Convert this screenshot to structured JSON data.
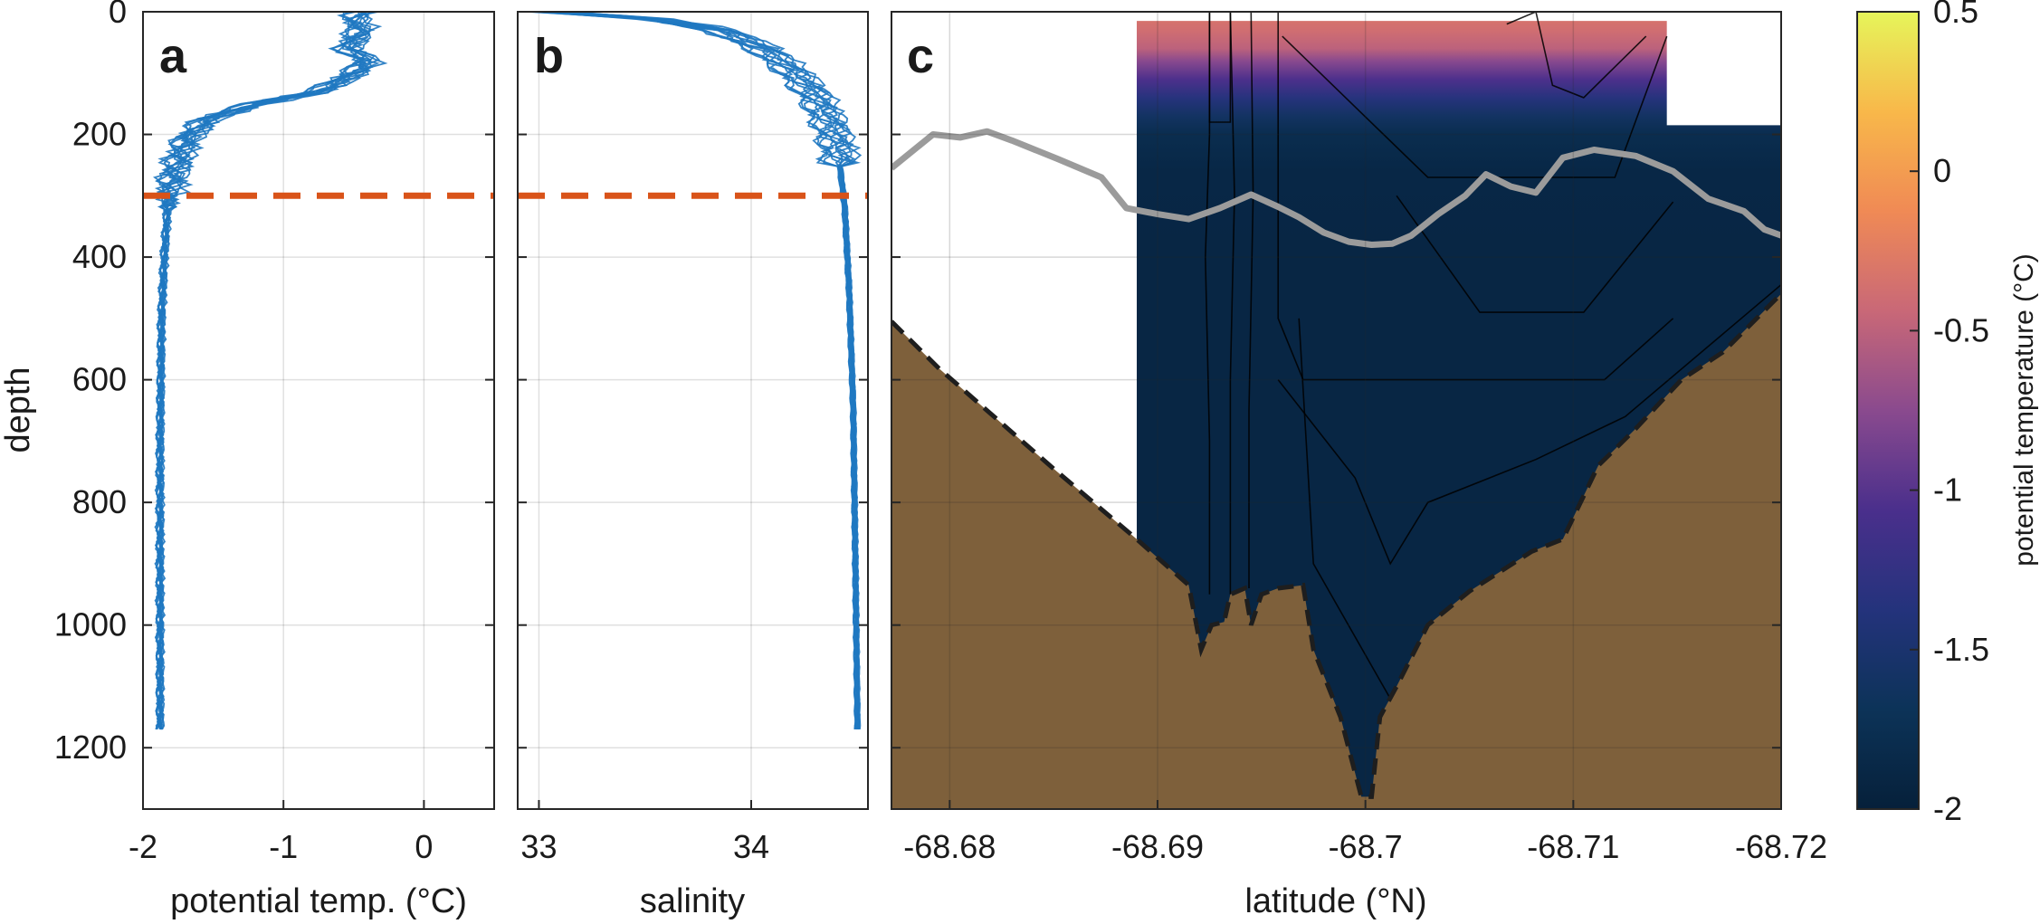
{
  "chart_data": [
    {
      "type": "line",
      "panel_label": "a",
      "xlabel": "potential temp. (°C)",
      "ylabel": "depth",
      "xlim": [
        -2,
        0.5
      ],
      "ylim": [
        1300,
        0
      ],
      "x_ticks": [
        -2,
        -1,
        0
      ],
      "y_ticks": [
        0,
        200,
        400,
        600,
        800,
        1000,
        1200
      ],
      "grid": true,
      "series": [
        {
          "color": "#1f78c1",
          "profile": [
            [
              -0.45,
              0
            ],
            [
              -0.5,
              10
            ],
            [
              -0.45,
              30
            ],
            [
              -0.55,
              60
            ],
            [
              -0.4,
              80
            ],
            [
              -0.5,
              100
            ],
            [
              -0.75,
              130
            ],
            [
              -1.2,
              150
            ],
            [
              -1.55,
              175
            ],
            [
              -1.7,
              210
            ],
            [
              -1.78,
              260
            ],
            [
              -1.82,
              300
            ],
            [
              -1.85,
              400
            ],
            [
              -1.87,
              500
            ],
            [
              -1.88,
              700
            ],
            [
              -1.88,
              900
            ],
            [
              -1.88,
              1100
            ],
            [
              -1.88,
              1175
            ]
          ]
        }
      ],
      "reference_line": {
        "depth": 300,
        "style": "dashed",
        "color": "#d95319"
      }
    },
    {
      "type": "line",
      "panel_label": "b",
      "xlabel": "salinity",
      "xlim": [
        32.9,
        34.55
      ],
      "ylim": [
        1300,
        0
      ],
      "x_ticks": [
        33,
        34
      ],
      "y_ticks": [
        0,
        200,
        400,
        600,
        800,
        1000,
        1200
      ],
      "grid": true,
      "series": [
        {
          "color": "#1f78c1",
          "profile": [
            [
              33.05,
              0
            ],
            [
              33.5,
              10
            ],
            [
              33.85,
              30
            ],
            [
              34.05,
              60
            ],
            [
              34.2,
              100
            ],
            [
              34.3,
              140
            ],
            [
              34.36,
              180
            ],
            [
              34.4,
              220
            ],
            [
              34.42,
              260
            ],
            [
              34.44,
              320
            ],
            [
              34.46,
              450
            ],
            [
              34.48,
              650
            ],
            [
              34.49,
              900
            ],
            [
              34.5,
              1175
            ]
          ]
        }
      ],
      "reference_line": {
        "depth": 300,
        "style": "dashed",
        "color": "#d95319"
      }
    },
    {
      "type": "heatmap",
      "panel_label": "c",
      "xlabel": "latitude (°N)",
      "xlim": [
        -68.6772,
        -68.72
      ],
      "ylim": [
        1300,
        0
      ],
      "x_ticks": [
        -68.68,
        -68.69,
        -68.7,
        -68.71,
        -68.72
      ],
      "y_ticks": [
        0,
        200,
        400,
        600,
        800,
        1000,
        1200
      ],
      "grid": true,
      "colorbar": {
        "label": "potential temperature (°C)",
        "range": [
          -2,
          0.5
        ],
        "ticks": [
          "0.5",
          "0",
          "-0.5",
          "-1",
          "-1.5",
          "-2"
        ],
        "colormap": [
          "#06203a",
          "#0c3358",
          "#24337c",
          "#4a2f8c",
          "#8a4a8e",
          "#c96877",
          "#f08a55",
          "#f8b84a",
          "#e6f55a"
        ]
      },
      "temperature_profile": [
        [
          0,
          -0.3
        ],
        [
          30,
          -0.38
        ],
        [
          60,
          -0.5
        ],
        [
          80,
          -0.75
        ],
        [
          110,
          -1.05
        ],
        [
          140,
          -1.35
        ],
        [
          170,
          -1.6
        ],
        [
          200,
          -1.78
        ],
        [
          260,
          -1.88
        ],
        [
          400,
          -1.9
        ],
        [
          1300,
          -1.9
        ]
      ],
      "bathymetry": {
        "color": "#7e603b",
        "surface": [
          [
            -68.6772,
            505
          ],
          [
            -68.6795,
            582
          ],
          [
            -68.685,
            745
          ],
          [
            -68.689,
            860
          ],
          [
            -68.6915,
            935
          ],
          [
            -68.6921,
            1040
          ],
          [
            -68.6926,
            1000
          ],
          [
            -68.6932,
            995
          ],
          [
            -68.6935,
            950
          ],
          [
            -68.6942,
            940
          ],
          [
            -68.6945,
            1000
          ],
          [
            -68.695,
            950
          ],
          [
            -68.6958,
            940
          ],
          [
            -68.697,
            935
          ],
          [
            -68.6975,
            1040
          ],
          [
            -68.6988,
            1150
          ],
          [
            -68.6998,
            1280
          ],
          [
            -68.7003,
            1280
          ],
          [
            -68.7007,
            1150
          ],
          [
            -68.7015,
            1100
          ],
          [
            -68.703,
            1000
          ],
          [
            -68.705,
            945
          ],
          [
            -68.708,
            880
          ],
          [
            -68.7095,
            860
          ],
          [
            -68.7112,
            740
          ],
          [
            -68.713,
            680
          ],
          [
            -68.7152,
            600
          ],
          [
            -68.7172,
            555
          ],
          [
            -68.72,
            460
          ]
        ]
      },
      "isotherm_line": {
        "color": "#9b9b9b",
        "points": [
          [
            -68.6772,
            255
          ],
          [
            -68.6792,
            200
          ],
          [
            -68.6805,
            205
          ],
          [
            -68.6818,
            195
          ],
          [
            -68.683,
            210
          ],
          [
            -68.6852,
            240
          ],
          [
            -68.6873,
            270
          ],
          [
            -68.6885,
            320
          ],
          [
            -68.69,
            330
          ],
          [
            -68.6915,
            338
          ],
          [
            -68.693,
            320
          ],
          [
            -68.6945,
            298
          ],
          [
            -68.6958,
            318
          ],
          [
            -68.6968,
            335
          ],
          [
            -68.698,
            360
          ],
          [
            -68.6992,
            375
          ],
          [
            -68.7003,
            380
          ],
          [
            -68.7013,
            378
          ],
          [
            -68.7022,
            365
          ],
          [
            -68.7035,
            330
          ],
          [
            -68.7048,
            300
          ],
          [
            -68.7058,
            265
          ],
          [
            -68.707,
            285
          ],
          [
            -68.7082,
            295
          ],
          [
            -68.7095,
            238
          ],
          [
            -68.711,
            225
          ],
          [
            -68.713,
            235
          ],
          [
            -68.7148,
            260
          ],
          [
            -68.7165,
            305
          ],
          [
            -68.7182,
            325
          ],
          [
            -68.7192,
            355
          ],
          [
            -68.7206,
            372
          ]
        ]
      }
    }
  ]
}
